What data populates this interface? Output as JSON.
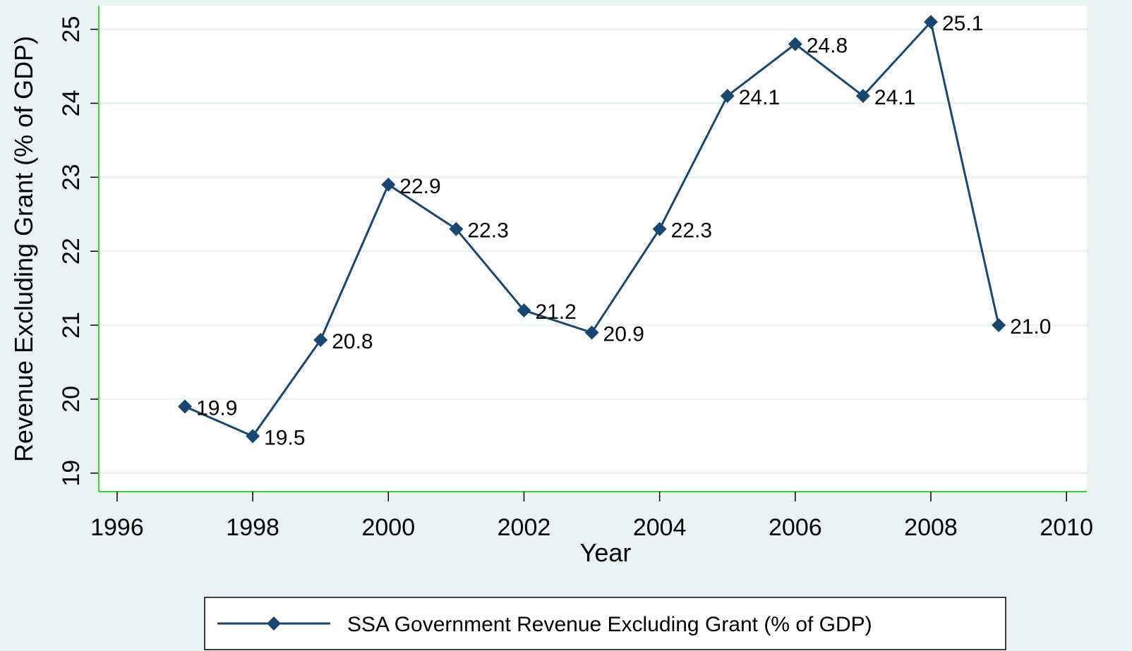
{
  "chart_data": {
    "type": "line",
    "x_label": "Year",
    "y_label": "Revenue Excluding Grant (% of GDP)",
    "x": [
      1997,
      1998,
      1999,
      2000,
      2001,
      2002,
      2003,
      2004,
      2005,
      2006,
      2007,
      2008,
      2009
    ],
    "series": [
      {
        "name": "SSA Government Revenue Excluding Grant (% of GDP)",
        "color": "#1a476f",
        "values": [
          19.9,
          19.5,
          20.8,
          22.9,
          22.3,
          21.2,
          20.9,
          22.3,
          24.1,
          24.8,
          24.1,
          25.1,
          21
        ],
        "value_labels": [
          "19.9",
          "19.5",
          "20.8",
          "22.9",
          "22.3",
          "21.2",
          "20.9",
          "22.3",
          "24.1",
          "24.8",
          "24.1",
          "25.1",
          "21.0"
        ]
      }
    ],
    "xlim": [
      1995.73,
      2010.3
    ],
    "ylim": [
      18.75,
      25.32
    ],
    "xticks": [
      1996,
      1998,
      2000,
      2002,
      2004,
      2006,
      2008,
      2010
    ],
    "yticks": [
      19,
      20,
      21,
      22,
      23,
      24,
      25
    ],
    "grid": true,
    "legend": "bottom"
  }
}
